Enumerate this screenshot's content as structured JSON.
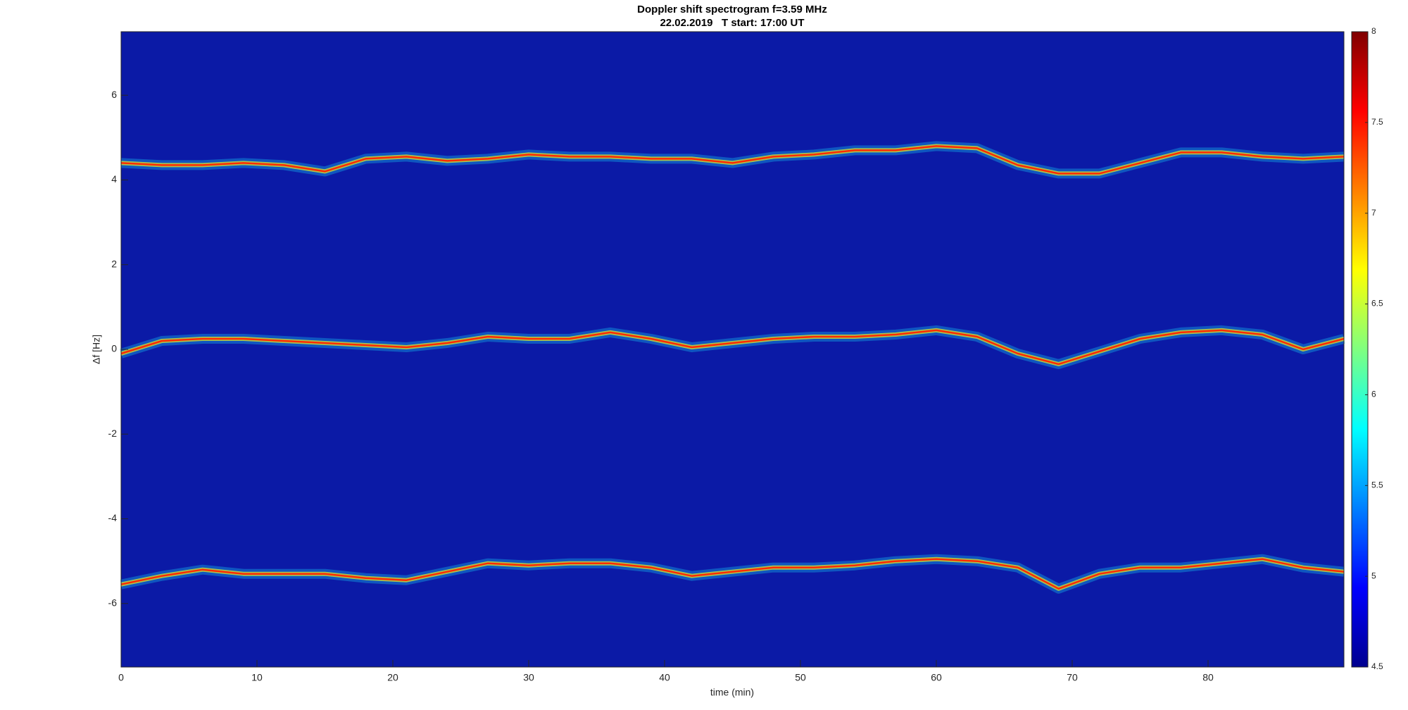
{
  "chart_data": {
    "type": "spectrogram",
    "title": "Doppler shift spectrogram f=3.59 MHz",
    "subtitle": "22.02.2019   T start: 17:00 UT",
    "x_label": "time (min)",
    "y_label": "Δf [Hz]",
    "background_color": "#0b1aa6",
    "colormap": "jet",
    "x": [
      0,
      3,
      6,
      9,
      12,
      15,
      18,
      21,
      24,
      27,
      30,
      33,
      36,
      39,
      42,
      45,
      48,
      51,
      54,
      57,
      60,
      63,
      66,
      69,
      72,
      75,
      78,
      81,
      84,
      87,
      90
    ],
    "series": [
      {
        "color": "#ff2a00",
        "values": [
          4.4,
          4.35,
          4.35,
          4.4,
          4.35,
          4.2,
          4.5,
          4.55,
          4.45,
          4.5,
          4.6,
          4.55,
          4.55,
          4.5,
          4.5,
          4.4,
          4.55,
          4.6,
          4.7,
          4.7,
          4.8,
          4.75,
          4.35,
          4.15,
          4.15,
          4.4,
          4.65,
          4.65,
          4.55,
          4.5,
          4.55
        ]
      },
      {
        "color": "#ff2a00",
        "values": [
          -0.1,
          0.2,
          0.25,
          0.25,
          0.2,
          0.15,
          0.1,
          0.05,
          0.15,
          0.3,
          0.25,
          0.25,
          0.4,
          0.25,
          0.05,
          0.15,
          0.25,
          0.3,
          0.3,
          0.35,
          0.45,
          0.3,
          -0.1,
          -0.35,
          -0.05,
          0.25,
          0.4,
          0.45,
          0.35,
          0.0,
          0.25
        ]
      },
      {
        "color": "#ff2a00",
        "values": [
          -5.55,
          -5.35,
          -5.2,
          -5.3,
          -5.3,
          -5.3,
          -5.4,
          -5.45,
          -5.25,
          -5.05,
          -5.1,
          -5.05,
          -5.05,
          -5.15,
          -5.35,
          -5.25,
          -5.15,
          -5.15,
          -5.1,
          -5.0,
          -4.95,
          -5.0,
          -5.15,
          -5.65,
          -5.3,
          -5.15,
          -5.15,
          -5.05,
          -4.95,
          -5.15,
          -5.25
        ]
      }
    ],
    "xlim": [
      0,
      90
    ],
    "xticks": [
      0,
      10,
      20,
      30,
      40,
      50,
      60,
      70,
      80
    ],
    "ylim": [
      -7.5,
      7.5
    ],
    "yticks": [
      -6,
      -4,
      -2,
      0,
      2,
      4,
      6
    ],
    "clim": [
      4.5,
      8
    ],
    "cticks": [
      4.5,
      5,
      5.5,
      6,
      6.5,
      7,
      7.5,
      8
    ]
  }
}
